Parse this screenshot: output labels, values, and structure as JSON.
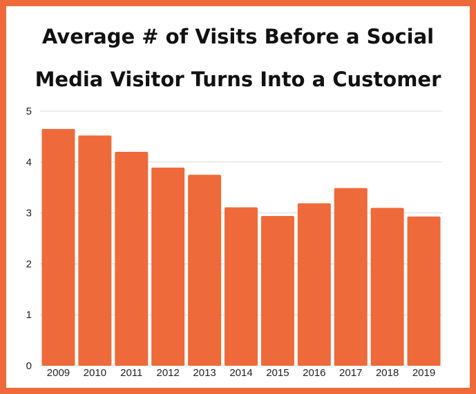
{
  "colors": {
    "frame": "#ee6a3a",
    "bar": "#ee6a3a",
    "gridline": "#d9d9d9",
    "text": "#111111"
  },
  "chart_data": {
    "type": "bar",
    "title_lines": [
      "Average # of Visits Before a Social",
      "Media Visitor Turns Into a Customer"
    ],
    "categories": [
      "2009",
      "2010",
      "2011",
      "2012",
      "2013",
      "2014",
      "2015",
      "2016",
      "2017",
      "2018",
      "2019"
    ],
    "values": [
      4.65,
      4.52,
      4.2,
      3.89,
      3.75,
      3.11,
      2.94,
      3.19,
      3.49,
      3.1,
      2.93
    ],
    "y_ticks": [
      "0",
      "1",
      "2",
      "3",
      "4",
      "5"
    ],
    "ylim": [
      0,
      5
    ],
    "grid": true,
    "legend": "none"
  }
}
